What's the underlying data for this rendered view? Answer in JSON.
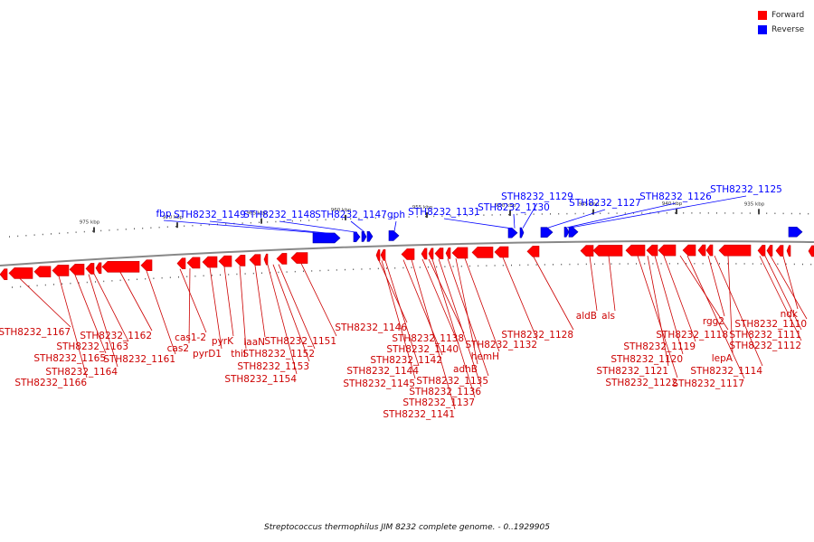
{
  "legend": [
    {
      "label": "Forward",
      "color": "#ff0000"
    },
    {
      "label": "Reverse",
      "color": "#0000ff"
    }
  ],
  "caption": "Streptococcus thermophilus JIM 8232 complete genome. - 0..1929905",
  "colors": {
    "forward": "#ff0000",
    "forward_dark": "#cc0000",
    "reverse": "#0000ff",
    "reverse_dark": "#0000aa",
    "backbone": "#888888"
  },
  "scale_ticks": [
    "975 kbp",
    "970 kbp",
    "965 kbp",
    "960 kbp",
    "955 kbp",
    "950 kbp",
    "945 kbp",
    "940 kbp",
    "935 kbp"
  ],
  "reverse_genes": [
    "fbp",
    "STH8232_1149",
    "STH8232_1148",
    "STH8232_1147",
    "gph",
    "STH8232_1131",
    "STH8232_1130",
    "STH8232_1129",
    "STH8232_1127",
    "STH8232_1126",
    "STH8232_1125"
  ],
  "forward_genes": [
    "STH8232_1167",
    "STH8232_1166",
    "STH8232_1165",
    "STH8232_1164",
    "STH8232_1163",
    "STH8232_1162",
    "STH8232_1161",
    "cas1-2",
    "cas2",
    "pyrD1",
    "pyrK",
    "thiI",
    "laaN",
    "STH8232_1154",
    "STH8232_1153",
    "STH8232_1152",
    "STH8232_1151",
    "STH8232_1146",
    "STH8232_1145",
    "STH8232_1144",
    "STH8232_1142",
    "STH8232_1141",
    "STH8232_1140",
    "STH8232_1138",
    "STH8232_1137",
    "STH8232_1136",
    "STH8232_1135",
    "adhB",
    "hemH",
    "STH8232_1132",
    "STH8232_1128",
    "aldB",
    "als",
    "STH8232_1122",
    "STH8232_1121",
    "STH8232_1120",
    "STH8232_1119",
    "STH8232_1118",
    "STH8232_1117",
    "rgg2",
    "STH8232_1114",
    "lepA",
    "STH8232_1112",
    "STH8232_1111",
    "STH8232_1110",
    "ndk"
  ]
}
